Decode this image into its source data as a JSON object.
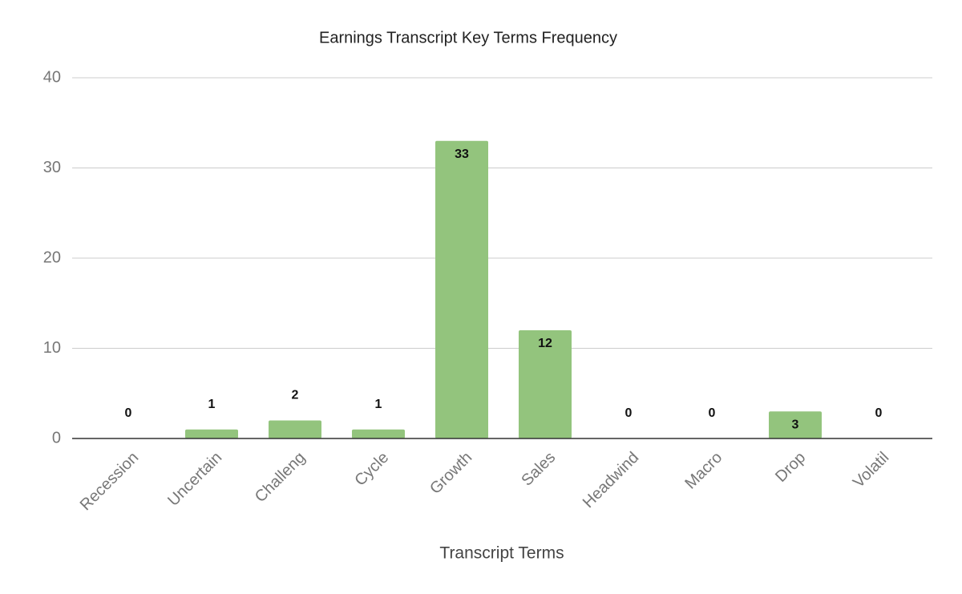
{
  "chart_data": {
    "type": "bar",
    "title": "Earnings Transcript Key Terms Frequency",
    "x_label": "Transcript Terms",
    "categories": [
      "Recession",
      "Uncertain",
      "Challeng",
      "Cycle",
      "Growth",
      "Sales",
      "Headwind",
      "Macro",
      "Drop",
      "Volatil"
    ],
    "values": [
      0,
      1,
      2,
      1,
      33,
      12,
      0,
      0,
      3,
      0
    ],
    "color": "#93c47d",
    "ylim": [
      0,
      40
    ],
    "yticks": [
      0,
      10,
      20,
      30,
      40
    ],
    "grid": true
  }
}
